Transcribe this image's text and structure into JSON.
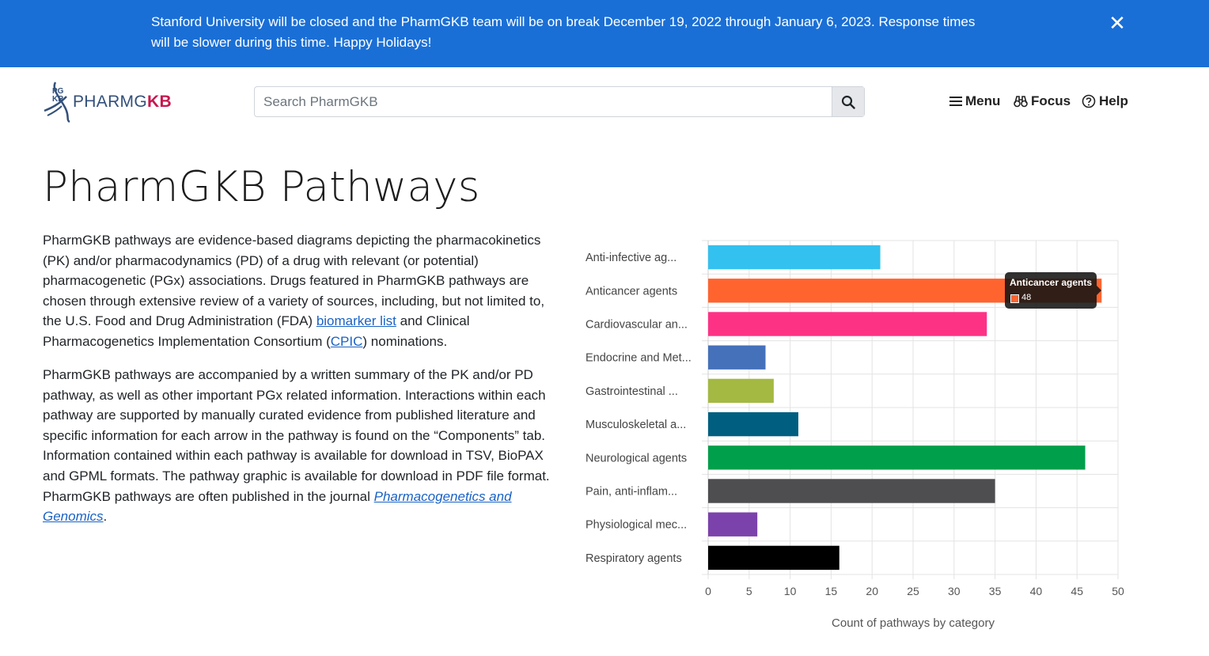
{
  "banner": {
    "text": "Stanford University will be closed and the PharmGKB team will be on break December 19, 2022 through January 6, 2023. Response times will be slower during this time. Happy Holidays!",
    "close_glyph": "✕"
  },
  "header": {
    "logo_pharmg": "PHARMG",
    "logo_kb": "KB",
    "logo_mark_top": "PG",
    "logo_mark_bottom": "KB",
    "search_placeholder": "Search PharmGKB",
    "nav": {
      "menu": "Menu",
      "focus": "Focus",
      "help": "Help"
    }
  },
  "page": {
    "title": "PharmGKB Pathways",
    "p1": {
      "t1": "PharmGKB pathways are evidence-based diagrams depicting the pharmacokinetics (PK) and/or pharmacodynamics (PD) of a drug with relevant (or potential) pharmacogenetic (PGx) associations. Drugs featured in PharmGKB pathways are chosen through extensive review of a variety of sources, including, but not limited to, the U.S. Food and Drug Administration (FDA) ",
      "link1": "biomarker list",
      "t2": " and Clinical Pharmacogenetics Implementation Consortium (",
      "link2": "CPIC",
      "t3": ") nominations."
    },
    "p2": {
      "t1": "PharmGKB pathways are accompanied by a written summary of the PK and/or PD pathway, as well as other important PGx related information. Interactions within each pathway are supported by manually curated evidence from published literature and specific information for each arrow in the pathway is found on the “Components” tab. Information contained within each pathway is available for download in TSV, BioPAX and GPML formats. The pathway graphic is available for download in PDF file format. PharmGKB pathways are often published in the journal ",
      "link": "Pharmacogenetics and Genomics",
      "t2": "."
    }
  },
  "chart_data": {
    "type": "bar",
    "orientation": "horizontal",
    "categories": [
      "Anti-infective ag...",
      "Anticancer agents",
      "Cardiovascular an...",
      "Endocrine and Met...",
      "Gastrointestinal ...",
      "Musculoskeletal a...",
      "Neurological agents",
      "Pain, anti-inflam...",
      "Physiological mec...",
      "Respiratory agents"
    ],
    "values": [
      21,
      48,
      34,
      7,
      8,
      11,
      46,
      35,
      6,
      16
    ],
    "colors": [
      "#33c1ef",
      "#ff642f",
      "#fe3285",
      "#4571bb",
      "#a4b942",
      "#005f81",
      "#009f4b",
      "#4e4e50",
      "#7c42ac",
      "#000000"
    ],
    "xlim": [
      0,
      50
    ],
    "xticks": [
      "0",
      "5",
      "10",
      "15",
      "20",
      "25",
      "30",
      "35",
      "40",
      "45",
      "50"
    ],
    "xlabel": "Count of pathways by category",
    "grid": true,
    "tooltip": {
      "title": "Anticancer agents",
      "value": "48",
      "color": "#ff642f"
    }
  }
}
